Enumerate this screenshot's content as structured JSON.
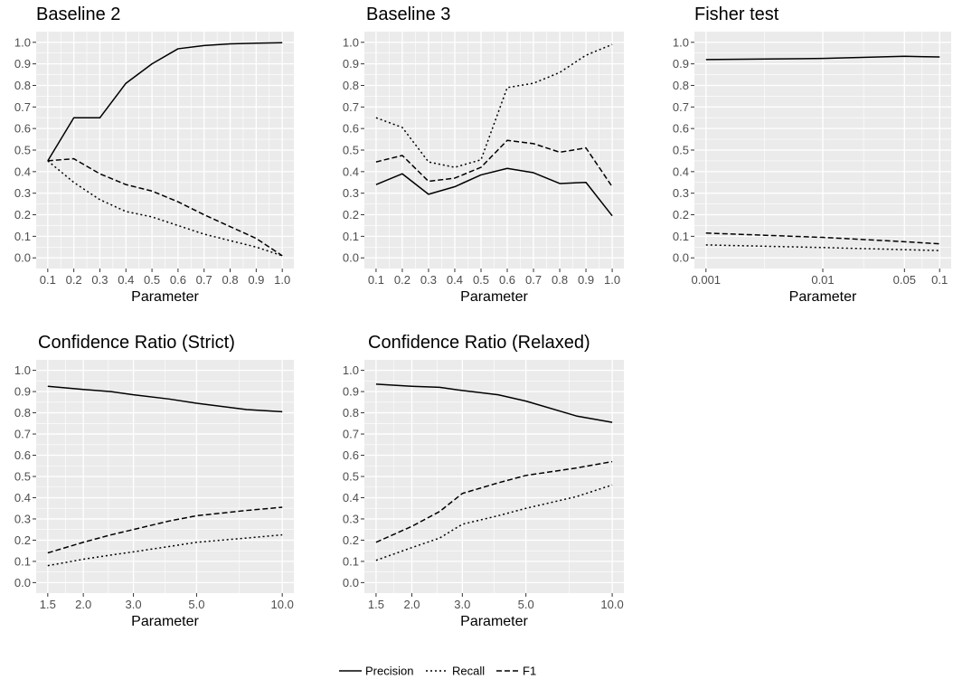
{
  "chart_data": [
    {
      "type": "line",
      "title": "Baseline 2",
      "xlabel": "Parameter",
      "x": [
        0.1,
        0.2,
        0.3,
        0.4,
        0.5,
        0.6,
        0.7,
        0.8,
        0.9,
        1.0
      ],
      "xlim": [
        0.1,
        1.0
      ],
      "xticks": [
        0.1,
        0.2,
        0.3,
        0.4,
        0.5,
        0.6,
        0.7,
        0.8,
        0.9,
        1.0
      ],
      "xtick_labels": [
        "0.1",
        "0.2",
        "0.3",
        "0.4",
        "0.5",
        "0.6",
        "0.7",
        "0.8",
        "0.9",
        "1.0"
      ],
      "ylim": [
        0,
        1
      ],
      "yticks": [
        0.0,
        0.1,
        0.2,
        0.3,
        0.4,
        0.5,
        0.6,
        0.7,
        0.8,
        0.9,
        1.0
      ],
      "ytick_labels": [
        "0.0",
        "0.1",
        "0.2",
        "0.3",
        "0.4",
        "0.5",
        "0.6",
        "0.7",
        "0.8",
        "0.9",
        "1.0"
      ],
      "series": [
        {
          "name": "Precision",
          "values": [
            0.45,
            0.65,
            0.65,
            0.81,
            0.9,
            0.97,
            0.985,
            0.993,
            0.996,
            0.998
          ]
        },
        {
          "name": "Recall",
          "values": [
            0.45,
            0.35,
            0.27,
            0.215,
            0.19,
            0.15,
            0.11,
            0.08,
            0.05,
            0.01
          ]
        },
        {
          "name": "F1",
          "values": [
            0.45,
            0.46,
            0.39,
            0.34,
            0.31,
            0.26,
            0.2,
            0.145,
            0.09,
            0.01
          ]
        }
      ]
    },
    {
      "type": "line",
      "title": "Baseline 3",
      "xlabel": "Parameter",
      "x": [
        0.1,
        0.2,
        0.3,
        0.4,
        0.5,
        0.6,
        0.7,
        0.8,
        0.9,
        1.0
      ],
      "xlim": [
        0.1,
        1.0
      ],
      "xticks": [
        0.1,
        0.2,
        0.3,
        0.4,
        0.5,
        0.6,
        0.7,
        0.8,
        0.9,
        1.0
      ],
      "xtick_labels": [
        "0.1",
        "0.2",
        "0.3",
        "0.4",
        "0.5",
        "0.6",
        "0.7",
        "0.8",
        "0.9",
        "1.0"
      ],
      "ylim": [
        0,
        1
      ],
      "yticks": [
        0.0,
        0.1,
        0.2,
        0.3,
        0.4,
        0.5,
        0.6,
        0.7,
        0.8,
        0.9,
        1.0
      ],
      "ytick_labels": [
        "0.0",
        "0.1",
        "0.2",
        "0.3",
        "0.4",
        "0.5",
        "0.6",
        "0.7",
        "0.8",
        "0.9",
        "1.0"
      ],
      "series": [
        {
          "name": "Precision",
          "values": [
            0.34,
            0.39,
            0.295,
            0.33,
            0.385,
            0.415,
            0.395,
            0.345,
            0.35,
            0.195
          ]
        },
        {
          "name": "Recall",
          "values": [
            0.65,
            0.605,
            0.445,
            0.42,
            0.455,
            0.79,
            0.81,
            0.86,
            0.94,
            0.99
          ]
        },
        {
          "name": "F1",
          "values": [
            0.445,
            0.475,
            0.355,
            0.37,
            0.42,
            0.545,
            0.53,
            0.49,
            0.51,
            0.33
          ]
        }
      ]
    },
    {
      "type": "line",
      "title": "Fisher test",
      "xlabel": "Parameter",
      "xscale": "log",
      "x": [
        0.001,
        0.01,
        0.05,
        0.1
      ],
      "xlim": [
        0.001,
        0.1
      ],
      "xticks": [
        0.001,
        0.01,
        0.05,
        0.1
      ],
      "xtick_labels": [
        "0.001",
        "0.01",
        "0.05",
        "0.1"
      ],
      "ylim": [
        0,
        1
      ],
      "yticks": [
        0.0,
        0.1,
        0.2,
        0.3,
        0.4,
        0.5,
        0.6,
        0.7,
        0.8,
        0.9,
        1.0
      ],
      "ytick_labels": [
        "0.0",
        "0.1",
        "0.2",
        "0.3",
        "0.4",
        "0.5",
        "0.6",
        "0.7",
        "0.8",
        "0.9",
        "1.0"
      ],
      "series": [
        {
          "name": "Precision",
          "values": [
            0.92,
            0.925,
            0.935,
            0.932
          ]
        },
        {
          "name": "Recall",
          "values": [
            0.06,
            0.048,
            0.038,
            0.034
          ]
        },
        {
          "name": "F1",
          "values": [
            0.115,
            0.095,
            0.075,
            0.065
          ]
        }
      ]
    },
    {
      "type": "line",
      "title": "Confidence Ratio (Strict)",
      "xlabel": "Parameter",
      "xscale": "log",
      "x": [
        1.5,
        2.0,
        2.5,
        3.0,
        4.0,
        5.0,
        7.5,
        10.0
      ],
      "xlim": [
        1.5,
        10.0
      ],
      "xticks": [
        1.5,
        2.0,
        3.0,
        5.0,
        10.0
      ],
      "xtick_labels": [
        "1.5",
        "2.0",
        "3.0",
        "5.0",
        "10.0"
      ],
      "ylim": [
        0,
        1
      ],
      "yticks": [
        0.0,
        0.1,
        0.2,
        0.3,
        0.4,
        0.5,
        0.6,
        0.7,
        0.8,
        0.9,
        1.0
      ],
      "ytick_labels": [
        "0.0",
        "0.1",
        "0.2",
        "0.3",
        "0.4",
        "0.5",
        "0.6",
        "0.7",
        "0.8",
        "0.9",
        "1.0"
      ],
      "series": [
        {
          "name": "Precision",
          "values": [
            0.925,
            0.91,
            0.9,
            0.885,
            0.865,
            0.845,
            0.815,
            0.805
          ]
        },
        {
          "name": "Recall",
          "values": [
            0.08,
            0.11,
            0.13,
            0.145,
            0.17,
            0.19,
            0.21,
            0.225
          ]
        },
        {
          "name": "F1",
          "values": [
            0.14,
            0.19,
            0.225,
            0.25,
            0.29,
            0.315,
            0.34,
            0.355
          ]
        }
      ]
    },
    {
      "type": "line",
      "title": "Confidence Ratio (Relaxed)",
      "xlabel": "Parameter",
      "xscale": "log",
      "x": [
        1.5,
        2.0,
        2.5,
        3.0,
        4.0,
        5.0,
        7.5,
        10.0
      ],
      "xlim": [
        1.5,
        10.0
      ],
      "xticks": [
        1.5,
        2.0,
        3.0,
        5.0,
        10.0
      ],
      "xtick_labels": [
        "1.5",
        "2.0",
        "3.0",
        "5.0",
        "10.0"
      ],
      "ylim": [
        0,
        1
      ],
      "yticks": [
        0.0,
        0.1,
        0.2,
        0.3,
        0.4,
        0.5,
        0.6,
        0.7,
        0.8,
        0.9,
        1.0
      ],
      "ytick_labels": [
        "0.0",
        "0.1",
        "0.2",
        "0.3",
        "0.4",
        "0.5",
        "0.6",
        "0.7",
        "0.8",
        "0.9",
        "1.0"
      ],
      "series": [
        {
          "name": "Precision",
          "values": [
            0.935,
            0.925,
            0.92,
            0.905,
            0.885,
            0.855,
            0.785,
            0.755
          ]
        },
        {
          "name": "Recall",
          "values": [
            0.105,
            0.165,
            0.21,
            0.275,
            0.315,
            0.35,
            0.405,
            0.46
          ]
        },
        {
          "name": "F1",
          "values": [
            0.19,
            0.265,
            0.335,
            0.42,
            0.47,
            0.505,
            0.54,
            0.57
          ]
        }
      ]
    }
  ],
  "legend": {
    "placement": "bottom",
    "entries": [
      {
        "label": "Precision",
        "dash": "solid"
      },
      {
        "label": "Recall",
        "dash": "dotted"
      },
      {
        "label": "F1",
        "dash": "dashed"
      }
    ]
  },
  "colors": {
    "panel_bg": "#ebebeb",
    "grid": "#ffffff",
    "line": "#000000",
    "tick_text": "#4d4d4d"
  }
}
